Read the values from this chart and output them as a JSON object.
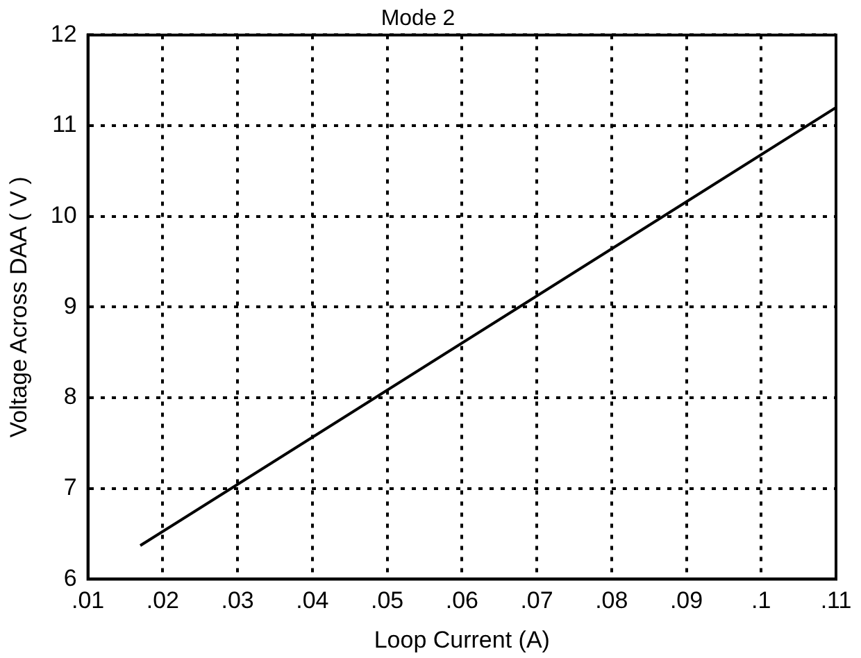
{
  "chart_data": {
    "type": "line",
    "title": "Mode 2",
    "xlabel": "Loop Current (A)",
    "ylabel": "Voltage Across DAA ( V )",
    "x": [
      0.017,
      0.11
    ],
    "series": [
      {
        "color": "#000000",
        "values": [
          6.37,
          11.2
        ]
      }
    ],
    "xlim": [
      0.01,
      0.11
    ],
    "xticks": [
      {
        "value": 0.01,
        "label": ".01"
      },
      {
        "value": 0.02,
        "label": ".02"
      },
      {
        "value": 0.03,
        "label": ".03"
      },
      {
        "value": 0.04,
        "label": ".04"
      },
      {
        "value": 0.05,
        "label": ".05"
      },
      {
        "value": 0.06,
        "label": ".06"
      },
      {
        "value": 0.07,
        "label": ".07"
      },
      {
        "value": 0.08,
        "label": ".08"
      },
      {
        "value": 0.09,
        "label": ".09"
      },
      {
        "value": 0.1,
        "label": ".1"
      },
      {
        "value": 0.11,
        "label": ".11"
      }
    ],
    "ylim": [
      6,
      12
    ],
    "yticks": [
      6,
      7,
      8,
      9,
      10,
      11,
      12
    ],
    "grid": true,
    "legend": false,
    "marker": "none",
    "line_style": "solid"
  }
}
